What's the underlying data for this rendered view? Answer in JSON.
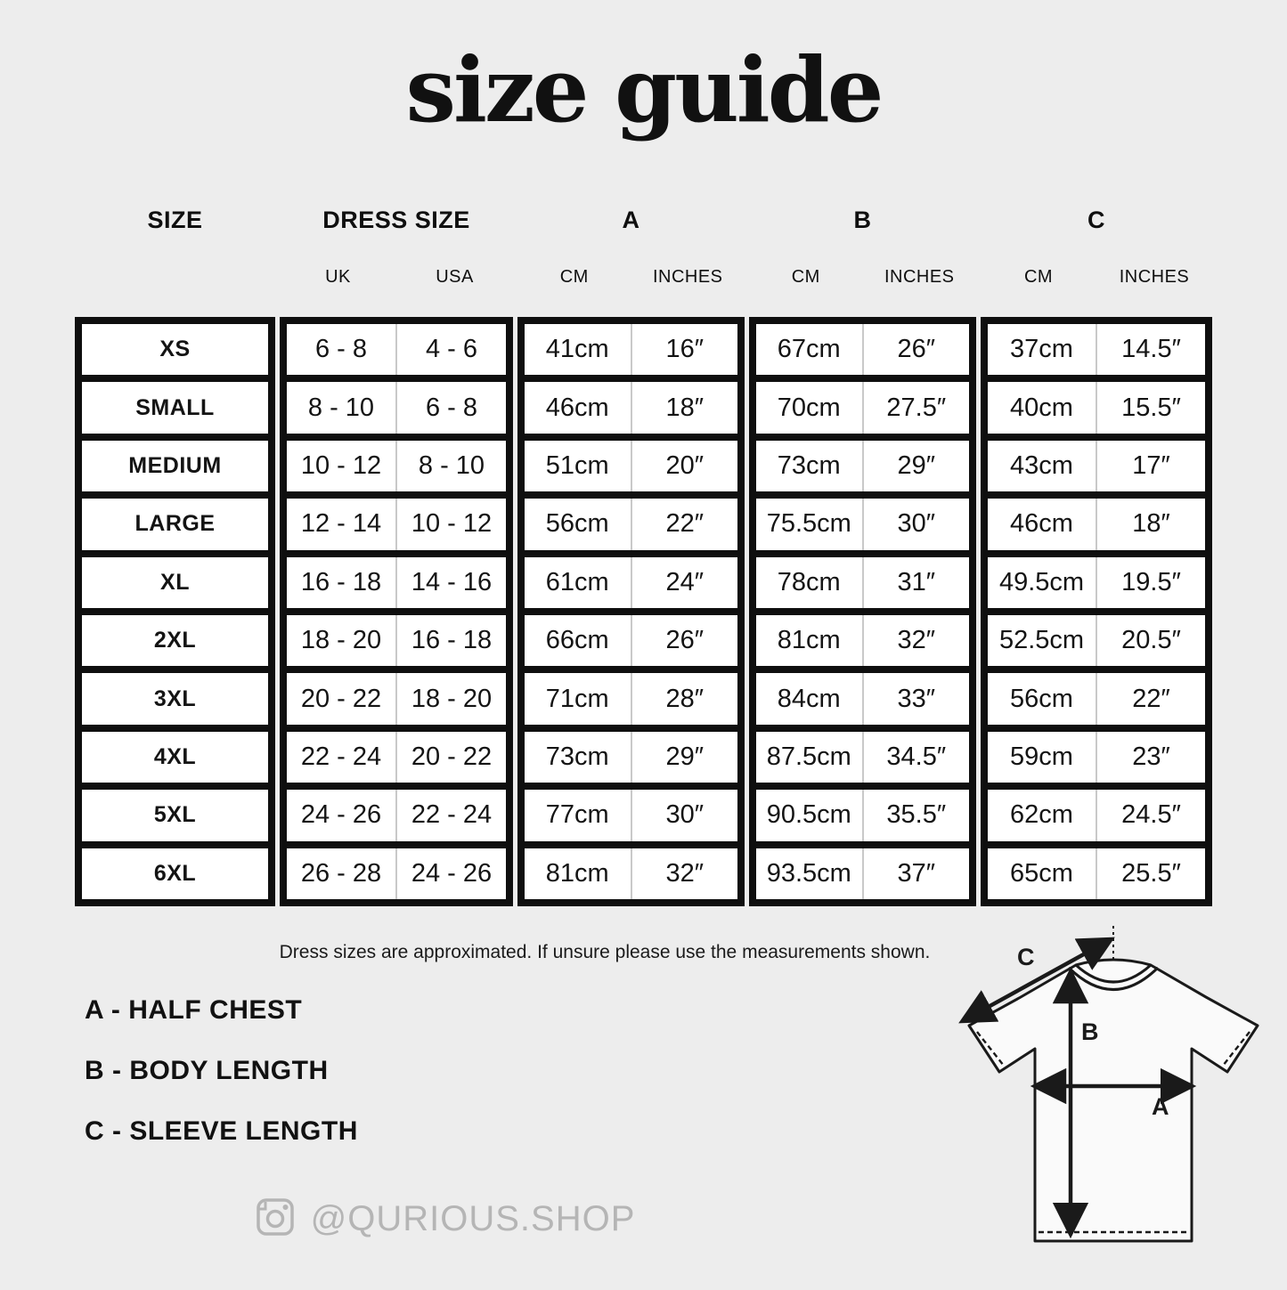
{
  "title": "size guide",
  "table": {
    "group_headers": [
      {
        "label": "SIZE"
      },
      {
        "label": "DRESS SIZE"
      },
      {
        "label": "A"
      },
      {
        "label": "B"
      },
      {
        "label": "C"
      }
    ],
    "sub_headers": [
      "UK",
      "USA",
      "CM",
      "INCHES",
      "CM",
      "INCHES",
      "CM",
      "INCHES"
    ],
    "rows": [
      {
        "size": "XS",
        "uk": "6 - 8",
        "usa": "4 - 6",
        "a_cm": "41cm",
        "a_in": "16″",
        "b_cm": "67cm",
        "b_in": "26″",
        "c_cm": "37cm",
        "c_in": "14.5″"
      },
      {
        "size": "SMALL",
        "uk": "8 - 10",
        "usa": "6 - 8",
        "a_cm": "46cm",
        "a_in": "18″",
        "b_cm": "70cm",
        "b_in": "27.5″",
        "c_cm": "40cm",
        "c_in": "15.5″"
      },
      {
        "size": "MEDIUM",
        "uk": "10 - 12",
        "usa": "8 - 10",
        "a_cm": "51cm",
        "a_in": "20″",
        "b_cm": "73cm",
        "b_in": "29″",
        "c_cm": "43cm",
        "c_in": "17″"
      },
      {
        "size": "LARGE",
        "uk": "12 - 14",
        "usa": "10 - 12",
        "a_cm": "56cm",
        "a_in": "22″",
        "b_cm": "75.5cm",
        "b_in": "30″",
        "c_cm": "46cm",
        "c_in": "18″"
      },
      {
        "size": "XL",
        "uk": "16 - 18",
        "usa": "14 - 16",
        "a_cm": "61cm",
        "a_in": "24″",
        "b_cm": "78cm",
        "b_in": "31″",
        "c_cm": "49.5cm",
        "c_in": "19.5″"
      },
      {
        "size": "2XL",
        "uk": "18 - 20",
        "usa": "16 - 18",
        "a_cm": "66cm",
        "a_in": "26″",
        "b_cm": "81cm",
        "b_in": "32″",
        "c_cm": "52.5cm",
        "c_in": "20.5″"
      },
      {
        "size": "3XL",
        "uk": "20 - 22",
        "usa": "18 - 20",
        "a_cm": "71cm",
        "a_in": "28″",
        "b_cm": "84cm",
        "b_in": "33″",
        "c_cm": "56cm",
        "c_in": "22″"
      },
      {
        "size": "4XL",
        "uk": "22 - 24",
        "usa": "20 - 22",
        "a_cm": "73cm",
        "a_in": "29″",
        "b_cm": "87.5cm",
        "b_in": "34.5″",
        "c_cm": "59cm",
        "c_in": "23″"
      },
      {
        "size": "5XL",
        "uk": "24 - 26",
        "usa": "22 - 24",
        "a_cm": "77cm",
        "a_in": "30″",
        "b_cm": "90.5cm",
        "b_in": "35.5″",
        "c_cm": "62cm",
        "c_in": "24.5″"
      },
      {
        "size": "6XL",
        "uk": "26 - 28",
        "usa": "24 - 26",
        "a_cm": "81cm",
        "a_in": "32″",
        "b_cm": "93.5cm",
        "b_in": "37″",
        "c_cm": "65cm",
        "c_in": "25.5″"
      }
    ]
  },
  "note": "Dress sizes are approximated. If unsure please use the measurements shown.",
  "legend": [
    {
      "label": "A - HALF CHEST"
    },
    {
      "label": "B - BODY LENGTH"
    },
    {
      "label": "C - SLEEVE LENGTH"
    }
  ],
  "footer": {
    "handle": "@QURIOUS.SHOP"
  },
  "diagram": {
    "label_a": "A",
    "label_b": "B",
    "label_c": "C"
  },
  "colors": {
    "background": "#ededed",
    "ink": "#0f0f0f",
    "cell_background": "#ffffff",
    "sub_divider": "#c9c9c9",
    "muted_gray": "#b5b5b5"
  }
}
